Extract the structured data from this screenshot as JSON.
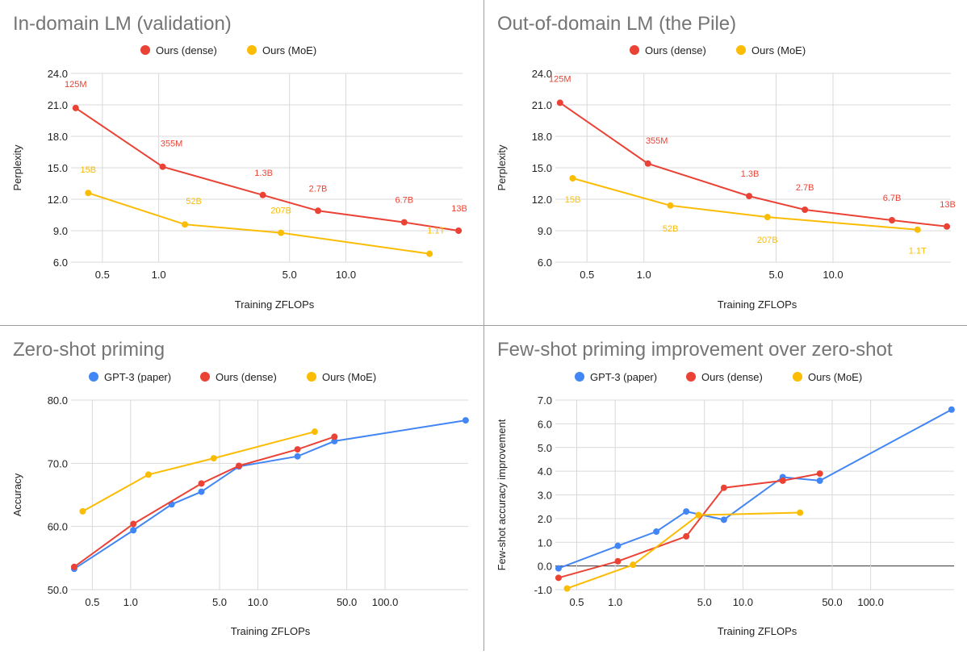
{
  "colors": {
    "gpt3": "#4285f4",
    "dense": "#ea4335",
    "moe": "#fbbc04"
  },
  "chart_data": [
    {
      "type": "line",
      "title": "In-domain LM (validation)",
      "xlabel": "Training ZFLOPs",
      "ylabel": "Perplexity",
      "xscale": "log",
      "xlim": [
        0.34,
        42
      ],
      "ylim": [
        6,
        24
      ],
      "yticks": [
        6,
        9,
        12,
        15,
        18,
        21,
        24
      ],
      "ytick_labels": [
        "6.0",
        "9.0",
        "12.0",
        "15.0",
        "18.0",
        "21.0",
        "24.0"
      ],
      "xticks": [
        0.5,
        1,
        5,
        10
      ],
      "xtick_labels": [
        "0.5",
        "1.0",
        "5.0",
        "10.0"
      ],
      "legend": [
        "Ours (dense)",
        "Ours (MoE)"
      ],
      "series": [
        {
          "name": "Ours (dense)",
          "color_key": "dense",
          "x": [
            0.36,
            1.05,
            3.6,
            7.1,
            20.5,
            40
          ],
          "y": [
            20.7,
            15.1,
            12.4,
            10.9,
            9.8,
            9.0
          ],
          "labels": [
            "125M",
            "355M",
            "1.3B",
            "2.7B",
            "6.7B",
            "13B"
          ]
        },
        {
          "name": "Ours (MoE)",
          "color_key": "moe",
          "x": [
            0.42,
            1.38,
            4.5,
            28
          ],
          "y": [
            12.6,
            9.6,
            8.8,
            6.8
          ],
          "labels": [
            "15B",
            "52B",
            "207B",
            "1.1T"
          ]
        }
      ]
    },
    {
      "type": "line",
      "title": "Out-of-domain LM (the Pile)",
      "xlabel": "Training ZFLOPs",
      "ylabel": "Perplexity",
      "xscale": "log",
      "xlim": [
        0.34,
        42
      ],
      "ylim": [
        6,
        24
      ],
      "yticks": [
        6,
        9,
        12,
        15,
        18,
        21,
        24
      ],
      "ytick_labels": [
        "6.0",
        "9.0",
        "12.0",
        "15.0",
        "18.0",
        "21.0",
        "24.0"
      ],
      "xticks": [
        0.5,
        1,
        5,
        10
      ],
      "xtick_labels": [
        "0.5",
        "1.0",
        "5.0",
        "10.0"
      ],
      "legend": [
        "Ours (dense)",
        "Ours (MoE)"
      ],
      "series": [
        {
          "name": "Ours (dense)",
          "color_key": "dense",
          "x": [
            0.36,
            1.05,
            3.6,
            7.1,
            20.5,
            40
          ],
          "y": [
            21.2,
            15.4,
            12.3,
            11.0,
            10.0,
            9.4
          ],
          "labels": [
            "125M",
            "355M",
            "1.3B",
            "2.7B",
            "6.7B",
            "13B"
          ]
        },
        {
          "name": "Ours (MoE)",
          "color_key": "moe",
          "x": [
            0.42,
            1.38,
            4.5,
            28
          ],
          "y": [
            14.0,
            11.4,
            10.3,
            9.1
          ],
          "labels": [
            "15B",
            "52B",
            "207B",
            "1.1T"
          ]
        }
      ]
    },
    {
      "type": "line",
      "title": "Zero-shot priming",
      "xlabel": "Training ZFLOPs",
      "ylabel": "Accuracy",
      "xscale": "log",
      "xlim": [
        0.34,
        450
      ],
      "ylim": [
        50,
        80
      ],
      "yticks": [
        50,
        60,
        70,
        80
      ],
      "ytick_labels": [
        "50.0",
        "60.0",
        "70.0",
        "80.0"
      ],
      "xticks": [
        0.5,
        1,
        5,
        10,
        50,
        100
      ],
      "xtick_labels": [
        "0.5",
        "1.0",
        "5.0",
        "10.0",
        "50.0",
        "100.0"
      ],
      "legend": [
        "GPT-3 (paper)",
        "Ours (dense)",
        "Ours (MoE)"
      ],
      "series": [
        {
          "name": "GPT-3 (paper)",
          "color_key": "gpt3",
          "x": [
            0.36,
            1.05,
            2.1,
            3.6,
            7.1,
            20.5,
            40,
            430
          ],
          "y": [
            53.3,
            59.4,
            63.5,
            65.5,
            69.5,
            71.1,
            73.5,
            76.8
          ]
        },
        {
          "name": "Ours (dense)",
          "color_key": "dense",
          "x": [
            0.36,
            1.05,
            3.6,
            7.1,
            20.5,
            40
          ],
          "y": [
            53.6,
            60.4,
            66.8,
            69.6,
            72.2,
            74.2
          ]
        },
        {
          "name": "Ours (MoE)",
          "color_key": "moe",
          "x": [
            0.42,
            1.38,
            4.5,
            28
          ],
          "y": [
            62.4,
            68.2,
            70.8,
            75.0
          ]
        }
      ]
    },
    {
      "type": "line",
      "title": "Few-shot priming improvement over zero-shot",
      "xlabel": "Training ZFLOPs",
      "ylabel": "Few-shot accuracy improvement",
      "xscale": "log",
      "xlim": [
        0.34,
        450
      ],
      "ylim": [
        -1,
        7
      ],
      "yticks": [
        -1,
        0,
        1,
        2,
        3,
        4,
        5,
        6,
        7
      ],
      "ytick_labels": [
        "-1.0",
        "0.0",
        "1.0",
        "2.0",
        "3.0",
        "4.0",
        "5.0",
        "6.0",
        "7.0"
      ],
      "xticks": [
        0.5,
        1,
        5,
        10,
        50,
        100
      ],
      "xtick_labels": [
        "0.5",
        "1.0",
        "5.0",
        "10.0",
        "50.0",
        "100.0"
      ],
      "legend": [
        "GPT-3 (paper)",
        "Ours (dense)",
        "Ours (MoE)"
      ],
      "series": [
        {
          "name": "GPT-3 (paper)",
          "color_key": "gpt3",
          "x": [
            0.36,
            1.05,
            2.1,
            3.6,
            7.1,
            20.5,
            40,
            430
          ],
          "y": [
            -0.1,
            0.85,
            1.45,
            2.3,
            1.95,
            3.75,
            3.6,
            6.6
          ]
        },
        {
          "name": "Ours (dense)",
          "color_key": "dense",
          "x": [
            0.36,
            1.05,
            3.6,
            7.1,
            20.5,
            40
          ],
          "y": [
            -0.5,
            0.2,
            1.25,
            3.3,
            3.6,
            3.9
          ]
        },
        {
          "name": "Ours (MoE)",
          "color_key": "moe",
          "x": [
            0.42,
            1.38,
            4.5,
            28
          ],
          "y": [
            -0.95,
            0.05,
            2.15,
            2.25
          ]
        }
      ]
    }
  ]
}
